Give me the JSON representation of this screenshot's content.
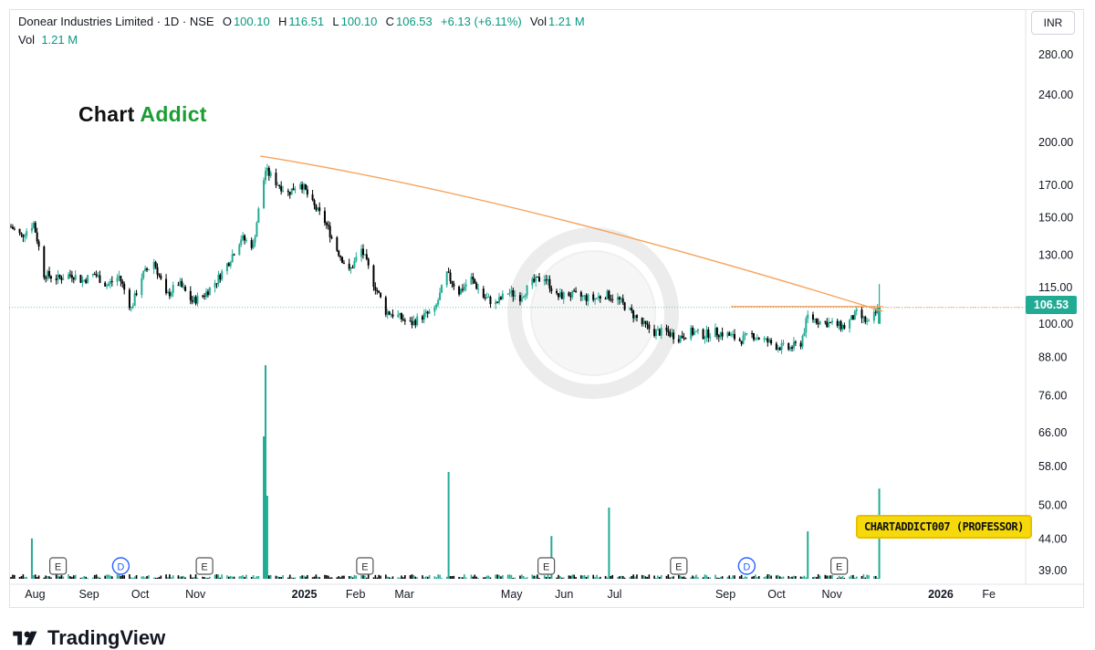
{
  "header": {
    "symbol": "Donear Industries Limited · 1D · NSE",
    "open_label": "O",
    "open": "100.10",
    "high_label": "H",
    "high": "116.51",
    "low_label": "L",
    "low": "100.10",
    "close_label": "C",
    "close": "106.53",
    "change": "+6.13 (+6.11%)",
    "vol_label": "Vol",
    "vol": "1.21 M"
  },
  "volume_legend": {
    "label": "Vol",
    "value": "1.21 M"
  },
  "logo_text": {
    "part1": "Chart ",
    "part2": "Addict"
  },
  "currency": "INR",
  "last_price": "106.53",
  "watermark_label": "CHARTADDICT007 (PROFESSOR)",
  "brand": "TradingView",
  "colors": {
    "up": "#22ab94",
    "down": "#000000",
    "trendline": "#f7a35c",
    "level": "#f7a35c",
    "volume_up": "#22ab94",
    "volume_down": "#000000"
  },
  "chart_data": {
    "type": "candlestick",
    "y_axis": {
      "scale": "log",
      "range": [
        37,
        300
      ],
      "ticks": [
        "280.00",
        "240.00",
        "200.00",
        "170.00",
        "150.00",
        "130.00",
        "115.00",
        "100.00",
        "88.00",
        "76.00",
        "66.00",
        "58.00",
        "50.00",
        "44.00",
        "39.00"
      ]
    },
    "x_axis": {
      "ticks": [
        "Aug",
        "Sep",
        "Oct",
        "Nov",
        "2025",
        "Feb",
        "Mar",
        "May",
        "Jun",
        "Jul",
        "Sep",
        "Oct",
        "Nov",
        "2026",
        "Fe"
      ]
    },
    "x_tick_dates": [
      "2024-08-01",
      "2024-09-01",
      "2024-10-01",
      "2024-11-01",
      "2025-01-01",
      "2025-02-01",
      "2025-03-01",
      "2025-05-01",
      "2025-06-01",
      "2025-07-01",
      "2025-09-01",
      "2025-10-01",
      "2025-11-01",
      "2026-01-01",
      "2026-02-01"
    ],
    "price_path": [
      [
        "2024-07-24",
        145
      ],
      [
        "2024-07-30",
        140
      ],
      [
        "2024-08-06",
        147
      ],
      [
        "2024-08-12",
        121
      ],
      [
        "2024-08-20",
        119
      ],
      [
        "2024-08-28",
        121
      ],
      [
        "2024-09-03",
        118
      ],
      [
        "2024-09-10",
        121
      ],
      [
        "2024-09-17",
        116
      ],
      [
        "2024-09-24",
        120
      ],
      [
        "2024-10-01",
        106
      ],
      [
        "2024-10-07",
        120
      ],
      [
        "2024-10-14",
        127
      ],
      [
        "2024-10-21",
        111
      ],
      [
        "2024-10-28",
        117
      ],
      [
        "2024-11-05",
        109
      ],
      [
        "2024-11-12",
        112
      ],
      [
        "2024-11-19",
        118
      ],
      [
        "2024-11-26",
        127
      ],
      [
        "2024-12-03",
        139
      ],
      [
        "2024-12-10",
        135
      ],
      [
        "2024-12-17",
        180
      ],
      [
        "2024-12-23",
        172
      ],
      [
        "2024-12-30",
        165
      ],
      [
        "2025-01-06",
        172
      ],
      [
        "2025-01-13",
        158
      ],
      [
        "2025-01-20",
        148
      ],
      [
        "2025-01-27",
        133
      ],
      [
        "2025-02-03",
        122
      ],
      [
        "2025-02-10",
        133
      ],
      [
        "2025-02-17",
        117
      ],
      [
        "2025-02-24",
        105
      ],
      [
        "2025-03-03",
        103
      ],
      [
        "2025-03-10",
        100
      ],
      [
        "2025-03-17",
        103
      ],
      [
        "2025-03-24",
        105
      ],
      [
        "2025-03-31",
        121
      ],
      [
        "2025-04-07",
        113
      ],
      [
        "2025-04-14",
        119
      ],
      [
        "2025-04-21",
        111
      ],
      [
        "2025-04-28",
        108
      ],
      [
        "2025-05-05",
        113
      ],
      [
        "2025-05-12",
        111
      ],
      [
        "2025-05-19",
        117
      ],
      [
        "2025-05-26",
        120
      ],
      [
        "2025-06-02",
        111
      ],
      [
        "2025-06-09",
        112
      ],
      [
        "2025-06-16",
        111
      ],
      [
        "2025-06-23",
        110
      ],
      [
        "2025-06-30",
        112
      ],
      [
        "2025-07-07",
        110
      ],
      [
        "2025-07-14",
        105
      ],
      [
        "2025-07-21",
        100
      ],
      [
        "2025-07-28",
        97
      ],
      [
        "2025-08-04",
        97
      ],
      [
        "2025-08-11",
        95
      ],
      [
        "2025-08-18",
        97
      ],
      [
        "2025-08-25",
        96
      ],
      [
        "2025-09-01",
        97
      ],
      [
        "2025-09-08",
        96
      ],
      [
        "2025-09-15",
        94
      ],
      [
        "2025-09-22",
        96
      ],
      [
        "2025-09-29",
        94
      ],
      [
        "2025-10-06",
        92
      ],
      [
        "2025-10-13",
        91
      ],
      [
        "2025-10-20",
        93
      ],
      [
        "2025-10-24",
        103
      ],
      [
        "2025-10-31",
        101
      ],
      [
        "2025-11-07",
        100
      ],
      [
        "2025-11-14",
        99
      ],
      [
        "2025-11-21",
        104
      ],
      [
        "2025-11-28",
        100
      ],
      [
        "2025-12-04",
        106.5
      ]
    ],
    "last_candle": {
      "date": "2025-12-04",
      "open": 100.1,
      "high": 116.51,
      "low": 100.1,
      "close": 106.53
    },
    "trendline": {
      "from": [
        "2024-12-14",
        190
      ],
      "to": [
        "2025-12-06",
        105
      ]
    },
    "horizontal_level": {
      "from": "2025-09-10",
      "to": "2025-12-06",
      "price": 106.53
    },
    "volume_spikes": [
      [
        "2024-08-05",
        0.17
      ],
      [
        "2024-12-16",
        0.6
      ],
      [
        "2024-12-17",
        0.9
      ],
      [
        "2024-12-18",
        0.35
      ],
      [
        "2025-04-01",
        0.45
      ],
      [
        "2025-05-30",
        0.18
      ],
      [
        "2025-07-02",
        0.3
      ],
      [
        "2025-10-24",
        0.2
      ],
      [
        "2025-12-04",
        0.38
      ]
    ],
    "events": [
      {
        "date": "2024-08-20",
        "label": "E",
        "kind": "earnings"
      },
      {
        "date": "2024-09-25",
        "label": "D",
        "kind": "dividend"
      },
      {
        "date": "2024-11-12",
        "label": "E",
        "kind": "earnings"
      },
      {
        "date": "2025-02-12",
        "label": "E",
        "kind": "earnings"
      },
      {
        "date": "2025-05-27",
        "label": "E",
        "kind": "earnings"
      },
      {
        "date": "2025-08-11",
        "label": "E",
        "kind": "earnings"
      },
      {
        "date": "2025-09-19",
        "label": "D",
        "kind": "dividend"
      },
      {
        "date": "2025-11-11",
        "label": "E",
        "kind": "earnings"
      }
    ]
  }
}
